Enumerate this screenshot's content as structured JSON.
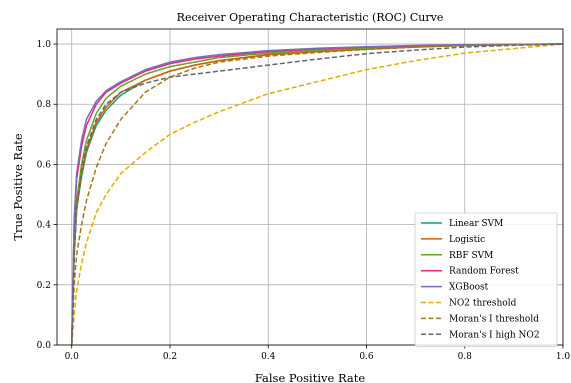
{
  "chart_data": {
    "type": "line",
    "title": "Receiver Operating Characteristic (ROC) Curve",
    "xlabel": "False Positive Rate",
    "ylabel": "True Positive Rate",
    "xlim": [
      -0.03,
      1.0
    ],
    "ylim": [
      0.0,
      1.05
    ],
    "xticks": [
      0.0,
      0.2,
      0.4,
      0.6,
      0.8,
      1.0
    ],
    "yticks": [
      0.0,
      0.2,
      0.4,
      0.6,
      0.8,
      1.0
    ],
    "xtick_labels": [
      "0.0",
      "0.2",
      "0.4",
      "0.6",
      "0.8",
      "1.0"
    ],
    "ytick_labels": [
      "0.0",
      "0.2",
      "0.4",
      "0.6",
      "0.8",
      "1.0"
    ],
    "grid": true,
    "legend_position": "lower-right",
    "series": [
      {
        "name": "Linear SVM",
        "color": "#1b9e77",
        "dash": "solid",
        "x": [
          0.0,
          0.005,
          0.01,
          0.02,
          0.03,
          0.05,
          0.07,
          0.1,
          0.15,
          0.2,
          0.25,
          0.3,
          0.4,
          0.5,
          0.6,
          0.7,
          0.8,
          0.9,
          1.0
        ],
        "y": [
          0.0,
          0.3,
          0.45,
          0.56,
          0.64,
          0.73,
          0.78,
          0.83,
          0.88,
          0.91,
          0.93,
          0.945,
          0.965,
          0.975,
          0.983,
          0.99,
          0.995,
          0.998,
          1.0
        ]
      },
      {
        "name": "Logistic",
        "color": "#d95f02",
        "dash": "solid",
        "x": [
          0.0,
          0.005,
          0.01,
          0.02,
          0.03,
          0.05,
          0.07,
          0.1,
          0.15,
          0.2,
          0.25,
          0.3,
          0.4,
          0.5,
          0.6,
          0.7,
          0.8,
          0.9,
          1.0
        ],
        "y": [
          0.0,
          0.32,
          0.46,
          0.57,
          0.65,
          0.74,
          0.79,
          0.84,
          0.88,
          0.91,
          0.93,
          0.945,
          0.965,
          0.975,
          0.983,
          0.99,
          0.995,
          0.998,
          1.0
        ]
      },
      {
        "name": "RBF SVM",
        "color": "#66a61e",
        "dash": "solid",
        "x": [
          0.0,
          0.005,
          0.01,
          0.02,
          0.03,
          0.05,
          0.07,
          0.1,
          0.15,
          0.2,
          0.25,
          0.3,
          0.4,
          0.5,
          0.6,
          0.7,
          0.8,
          0.9,
          1.0
        ],
        "y": [
          0.0,
          0.34,
          0.48,
          0.6,
          0.68,
          0.77,
          0.82,
          0.86,
          0.9,
          0.925,
          0.94,
          0.955,
          0.97,
          0.98,
          0.987,
          0.992,
          0.996,
          0.998,
          1.0
        ]
      },
      {
        "name": "Random Forest",
        "color": "#e7298a",
        "dash": "solid",
        "x": [
          0.0,
          0.005,
          0.01,
          0.02,
          0.03,
          0.05,
          0.07,
          0.1,
          0.15,
          0.2,
          0.25,
          0.3,
          0.4,
          0.5,
          0.6,
          0.7,
          0.8,
          0.9,
          1.0
        ],
        "y": [
          0.0,
          0.4,
          0.55,
          0.66,
          0.73,
          0.8,
          0.84,
          0.87,
          0.91,
          0.935,
          0.95,
          0.96,
          0.975,
          0.984,
          0.99,
          0.994,
          0.997,
          0.999,
          1.0
        ]
      },
      {
        "name": "XGBoost",
        "color": "#7570b3",
        "dash": "solid",
        "x": [
          0.0,
          0.005,
          0.01,
          0.02,
          0.03,
          0.05,
          0.07,
          0.1,
          0.15,
          0.2,
          0.25,
          0.3,
          0.4,
          0.5,
          0.6,
          0.7,
          0.8,
          0.9,
          1.0
        ],
        "y": [
          0.0,
          0.42,
          0.57,
          0.68,
          0.75,
          0.81,
          0.845,
          0.875,
          0.915,
          0.94,
          0.955,
          0.965,
          0.978,
          0.986,
          0.991,
          0.995,
          0.998,
          0.999,
          1.0
        ]
      },
      {
        "name": "NO2 threshold",
        "color": "#e6ab02",
        "dash": "dashed",
        "x": [
          0.0,
          0.005,
          0.01,
          0.02,
          0.03,
          0.05,
          0.07,
          0.1,
          0.15,
          0.2,
          0.25,
          0.3,
          0.4,
          0.5,
          0.6,
          0.7,
          0.8,
          0.9,
          1.0
        ],
        "y": [
          0.0,
          0.1,
          0.18,
          0.27,
          0.34,
          0.44,
          0.5,
          0.57,
          0.64,
          0.7,
          0.74,
          0.775,
          0.835,
          0.875,
          0.915,
          0.945,
          0.97,
          0.985,
          1.0
        ]
      },
      {
        "name": "Moran's I threshold",
        "color": "#a6761d",
        "dash": "dashed",
        "x": [
          0.0,
          0.005,
          0.01,
          0.02,
          0.03,
          0.05,
          0.07,
          0.1,
          0.15,
          0.2,
          0.25,
          0.3,
          0.4,
          0.5,
          0.6,
          0.7,
          0.8,
          0.9,
          1.0
        ],
        "y": [
          0.0,
          0.2,
          0.3,
          0.4,
          0.48,
          0.59,
          0.67,
          0.75,
          0.84,
          0.89,
          0.92,
          0.94,
          0.96,
          0.972,
          0.982,
          0.99,
          0.995,
          0.998,
          1.0
        ]
      },
      {
        "name": "Moran's I high NO2",
        "color": "#666666",
        "dash": "dashed",
        "x": [
          0.0,
          0.005,
          0.01,
          0.02,
          0.03,
          0.05,
          0.07,
          0.1,
          0.15,
          0.2,
          0.25,
          0.3,
          0.4,
          0.5,
          0.6,
          0.7,
          0.8,
          0.9,
          1.0
        ],
        "y": [
          0.0,
          0.3,
          0.45,
          0.58,
          0.66,
          0.75,
          0.8,
          0.84,
          0.87,
          0.89,
          0.9,
          0.91,
          0.93,
          0.95,
          0.968,
          0.98,
          0.99,
          0.996,
          1.0
        ]
      }
    ]
  }
}
